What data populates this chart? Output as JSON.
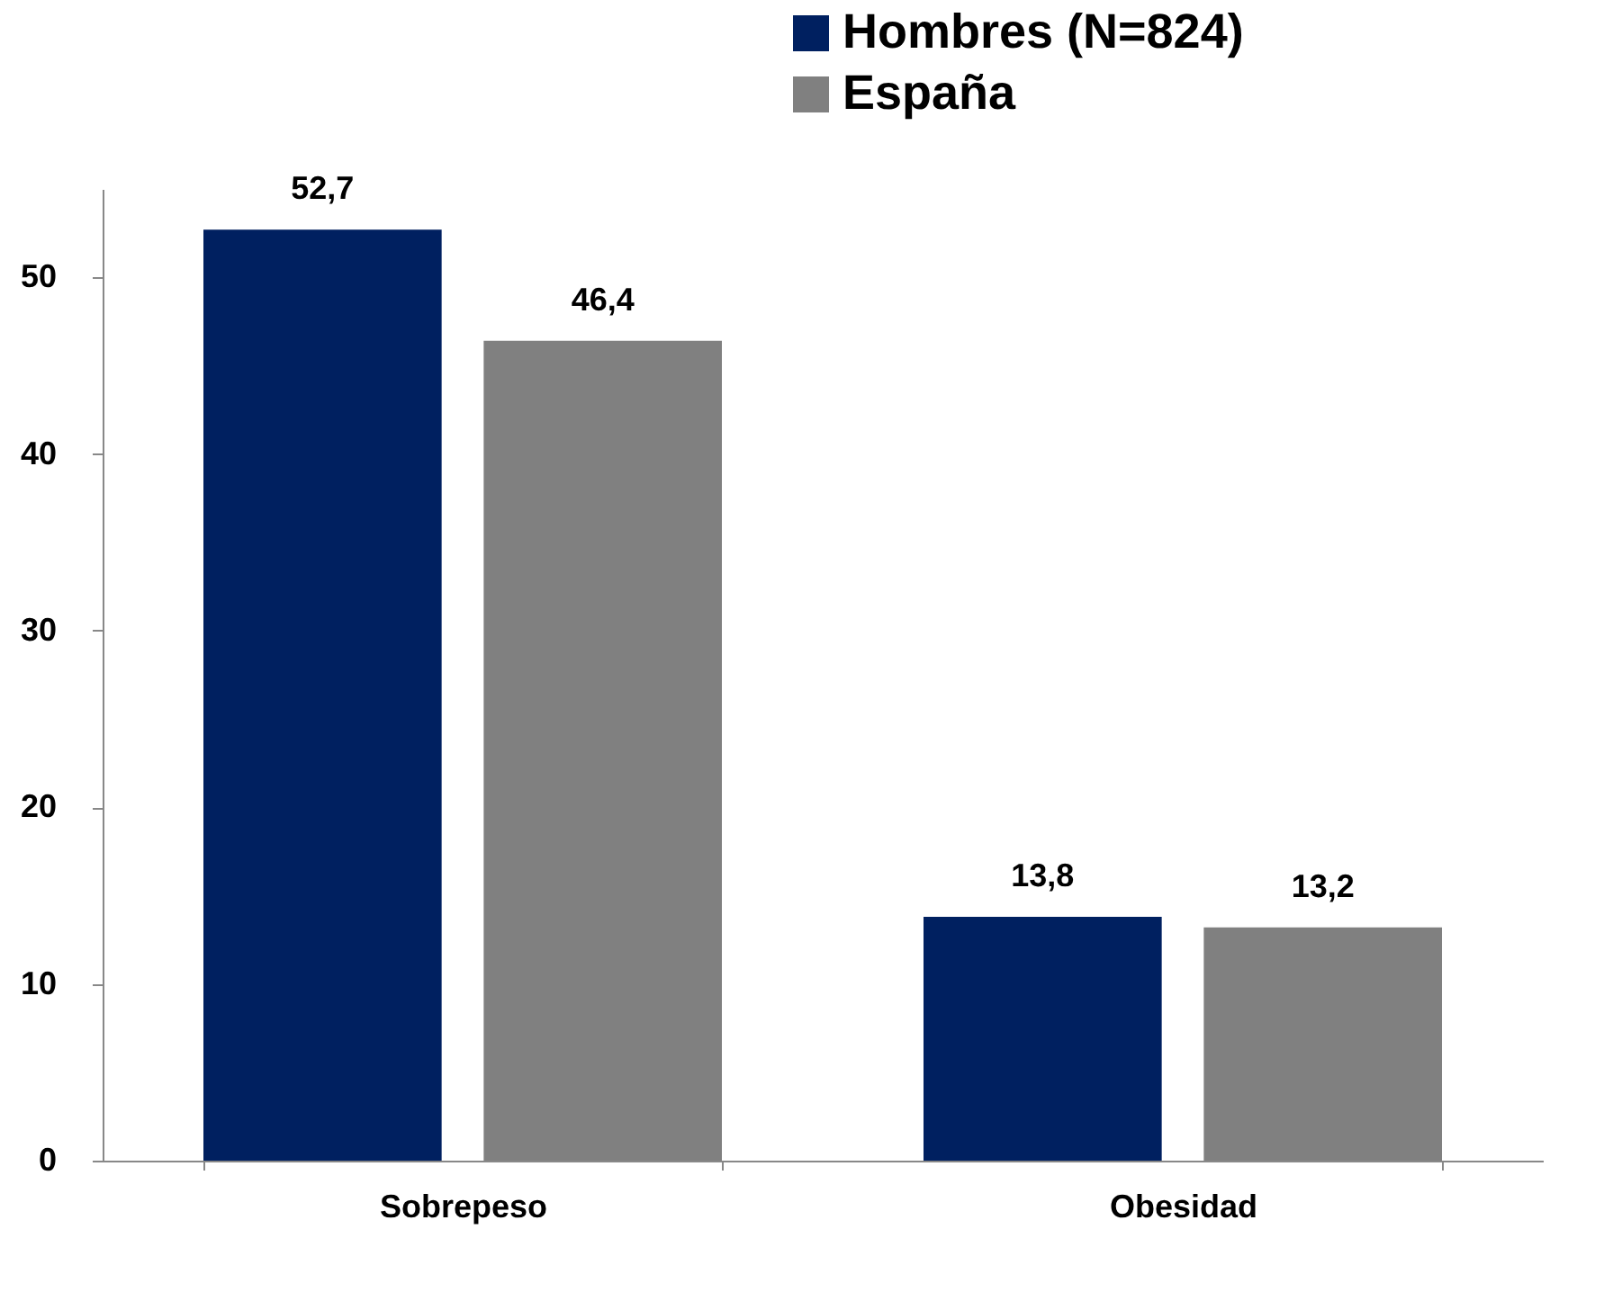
{
  "chart_data": {
    "type": "bar",
    "categories": [
      "Sobrepeso",
      "Obesidad"
    ],
    "series": [
      {
        "name": "Hombres (N=824)",
        "color": "#002060",
        "values": [
          52.7,
          13.8
        ],
        "value_labels": [
          "52,7",
          "13,8"
        ]
      },
      {
        "name": "España",
        "color": "#808080",
        "values": [
          46.4,
          13.2
        ],
        "value_labels": [
          "46,4",
          "13,2"
        ]
      }
    ],
    "ylim": [
      0,
      55
    ],
    "yticks": [
      0,
      10,
      20,
      30,
      40,
      50
    ],
    "grid": false,
    "legend": "top right"
  }
}
